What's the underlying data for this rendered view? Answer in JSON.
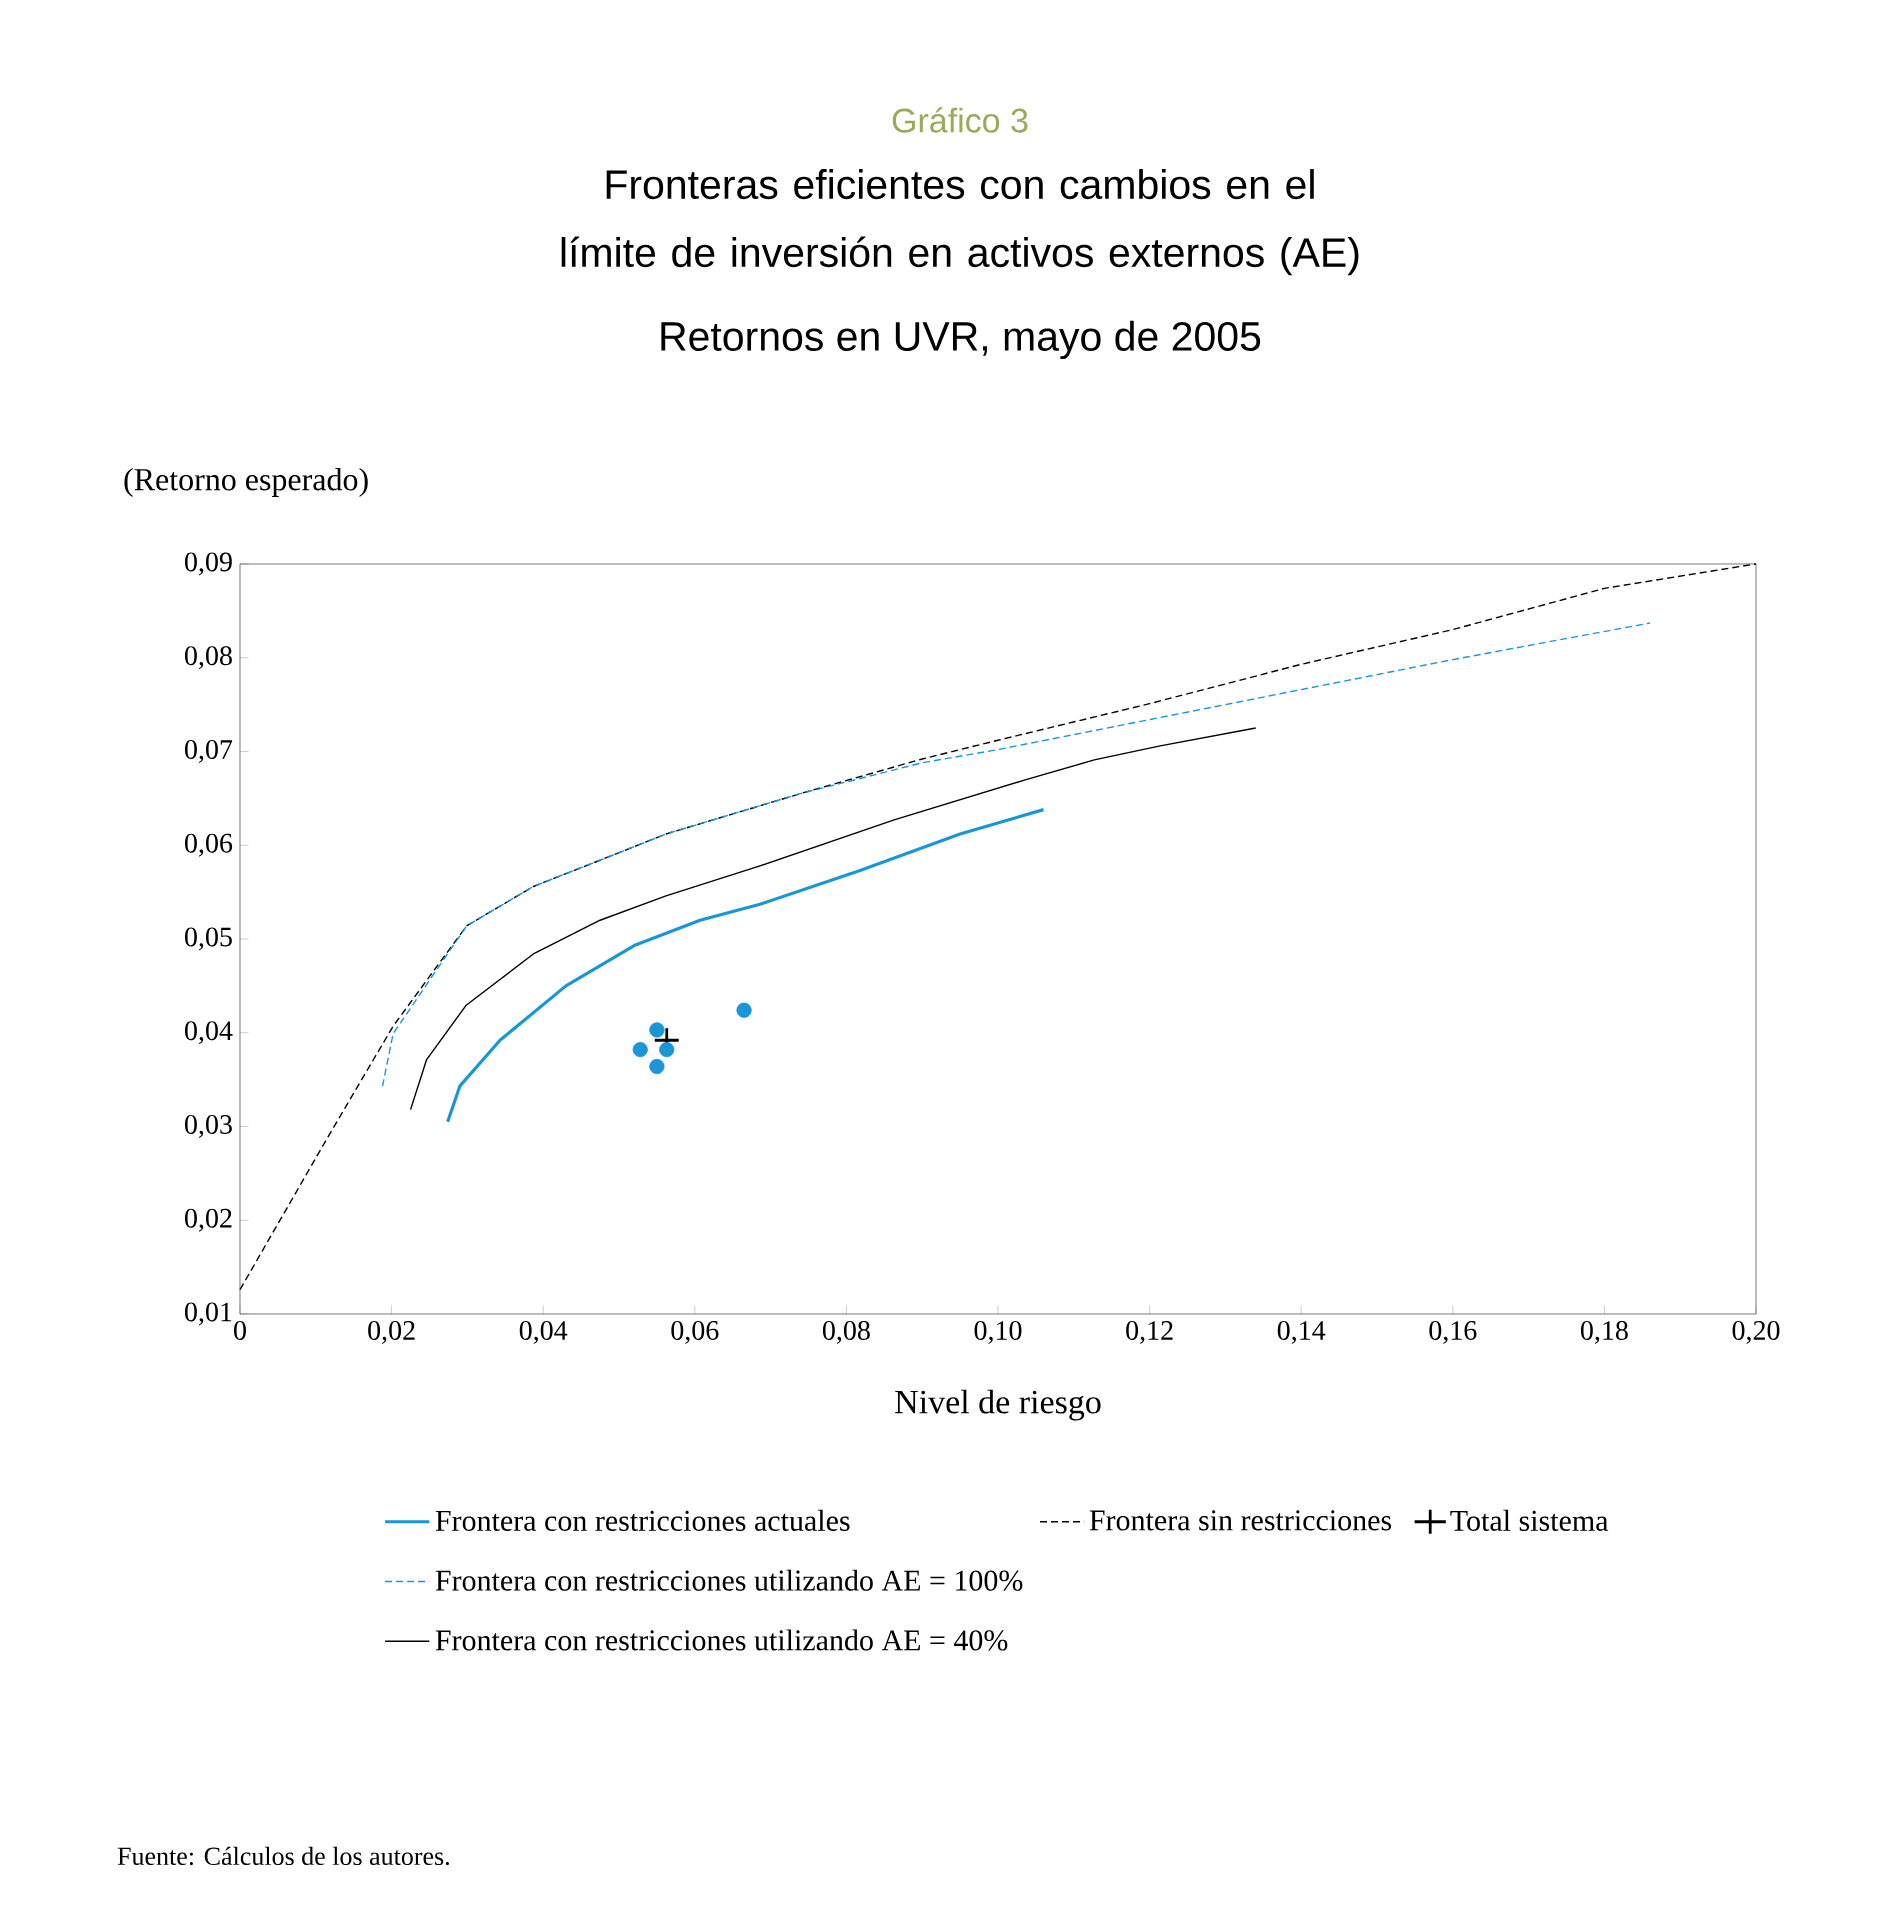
{
  "chart_data": {
    "type": "line",
    "title": "Fronteras eficientes con cambios en el límite de inversión en activos externos (AE)",
    "subtitle": "Retornos en UVR,  mayo de 2005",
    "xlabel": "Nivel de riesgo",
    "ylabel": "(Retorno esperado)",
    "annotations": [
      "Gráfico 3",
      "Fuente: Cálculos de los autores."
    ],
    "xlim": [
      0,
      0.2
    ],
    "ylim": [
      0.01,
      0.09
    ],
    "xticks": [
      0,
      {
        "value": 0.02,
        "label": "0,02"
      },
      {
        "value": 0.04,
        "label": "0,04"
      },
      {
        "value": 0.06,
        "label": "0,06"
      },
      {
        "value": 0.08,
        "label": "0,08"
      },
      {
        "value": 0.1,
        "label": "0,10"
      },
      {
        "value": 0.12,
        "label": "0,12"
      },
      {
        "value": 0.14,
        "label": "0,14"
      },
      {
        "value": 0.16,
        "label": "0,16"
      },
      {
        "value": 0.18,
        "label": "0,18"
      },
      {
        "value": 0.2,
        "label": "0,20"
      }
    ],
    "yticks": [
      {
        "value": 0.01,
        "label": "0,01"
      },
      {
        "value": 0.02,
        "label": "0,02"
      },
      {
        "value": 0.03,
        "label": "0,03"
      },
      {
        "value": 0.04,
        "label": "0,04"
      },
      {
        "value": 0.05,
        "label": "0,05"
      },
      {
        "value": 0.06,
        "label": "0,06"
      },
      {
        "value": 0.07,
        "label": "0,07"
      },
      {
        "value": 0.08,
        "label": "0,08"
      },
      {
        "value": 0.09,
        "label": "0,09"
      }
    ],
    "grid": false,
    "legend": "bottom",
    "series": [
      {
        "name": "Frontera con restricciones actuales",
        "color": "#1a96d8",
        "line_style": "solid",
        "x": [
          0.0274,
          0.029,
          0.0343,
          0.043,
          0.052,
          0.0607,
          0.0686,
          0.0818,
          0.095,
          0.106
        ],
        "values": [
          0.0305,
          0.0343,
          0.0392,
          0.045,
          0.0493,
          0.052,
          0.0537,
          0.0573,
          0.0612,
          0.0638
        ]
      },
      {
        "name": "Frontera sin restricciones",
        "color": "#000000",
        "line_style": "dashed",
        "x": [
          0,
          0.0114,
          0.0202,
          0.0299,
          0.0387,
          0.0475,
          0.0562,
          0.0739,
          0.09,
          0.1,
          0.12,
          0.14,
          0.16,
          0.18,
          0.2
        ],
        "values": [
          0.0126,
          0.0286,
          0.0407,
          0.0514,
          0.0556,
          0.0584,
          0.0612,
          0.0655,
          0.0692,
          0.0712,
          0.0751,
          0.0793,
          0.083,
          0.0874,
          0.09
        ]
      },
      {
        "name": "Total sistema",
        "type": "scatter",
        "color": "#000000",
        "marker": "cross",
        "x": [
          0.0563
        ],
        "values": [
          0.0392
        ]
      },
      {
        "name": "Frontera con restricciones utilizando AE = 100%",
        "color": "#1a96d8",
        "line_style": "dashed",
        "x": [
          0.0188,
          0.0202,
          0.0299,
          0.0387,
          0.0475,
          0.0562,
          0.0739,
          0.09,
          0.1,
          0.12,
          0.14,
          0.16,
          0.186
        ],
        "values": [
          0.0343,
          0.0399,
          0.0514,
          0.0556,
          0.0584,
          0.0612,
          0.0655,
          0.0688,
          0.0702,
          0.0734,
          0.0766,
          0.0798,
          0.0837
        ]
      },
      {
        "name": "Frontera con restricciones utilizando AE = 40%",
        "color": "#000000",
        "line_style": "solid",
        "x": [
          0.0225,
          0.0246,
          0.0298,
          0.0387,
          0.0475,
          0.0562,
          0.0686,
          0.0863,
          0.1037,
          0.1127,
          0.1214,
          0.134
        ],
        "values": [
          0.0318,
          0.0371,
          0.0429,
          0.0484,
          0.052,
          0.0546,
          0.0578,
          0.0627,
          0.067,
          0.0691,
          0.0706,
          0.0725
        ]
      },
      {
        "type": "scatter",
        "color": "#1a96d8",
        "marker": "circle",
        "x": [
          0.0528,
          0.055,
          0.055,
          0.0563,
          0.0665
        ],
        "values": [
          0.0382,
          0.0403,
          0.0364,
          0.0382,
          0.0424
        ]
      }
    ]
  }
}
